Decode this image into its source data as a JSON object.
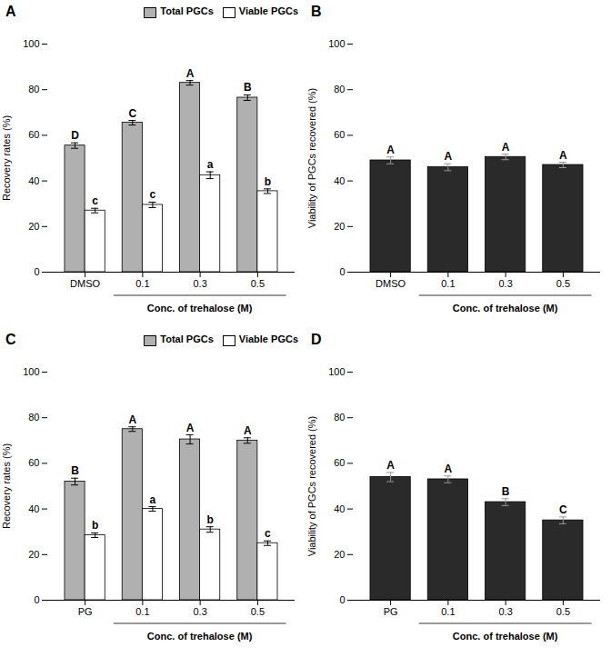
{
  "chart_data": [
    {
      "type": "bar",
      "title": "A",
      "categories": [
        "DMSO",
        "0.1",
        "0.3",
        "0.5"
      ],
      "series": [
        {
          "name": "Total PGCs",
          "color": "#b0b0b0",
          "values": [
            55.5,
            65.5,
            83.0,
            76.5
          ],
          "errors": [
            1.2,
            1.0,
            1.0,
            1.2
          ],
          "labels": [
            "D",
            "C",
            "A",
            "B"
          ]
        },
        {
          "name": "Viable PGCs",
          "color": "#ffffff",
          "values": [
            27.0,
            29.5,
            42.5,
            35.5
          ],
          "errors": [
            1.0,
            1.2,
            1.5,
            1.0
          ],
          "labels": [
            "c",
            "c",
            "a",
            "b"
          ]
        }
      ],
      "xlabel": "Conc. of trehalose (M)",
      "ylabel": "Recovery rates (%)",
      "ylim": [
        0,
        100
      ],
      "yticks": [
        0,
        20,
        40,
        60,
        80,
        100
      ],
      "legend": "upper right"
    },
    {
      "type": "bar",
      "title": "B",
      "categories": [
        "DMSO",
        "0.1",
        "0.3",
        "0.5"
      ],
      "values": [
        49.0,
        46.0,
        50.5,
        47.0
      ],
      "errors": [
        1.5,
        1.5,
        1.2,
        1.2
      ],
      "labels": [
        "A",
        "A",
        "A",
        "A"
      ],
      "color": "#2a2a2a",
      "xlabel": "Conc. of trehalose (M)",
      "ylabel": "Viability of PGCs recovered (%)",
      "ylim": [
        0,
        100
      ],
      "yticks": [
        0,
        20,
        40,
        60,
        80,
        100
      ]
    },
    {
      "type": "bar",
      "title": "C",
      "categories": [
        "PG",
        "0.1",
        "0.3",
        "0.5"
      ],
      "series": [
        {
          "name": "Total PGCs",
          "color": "#b0b0b0",
          "values": [
            52.0,
            75.0,
            70.5,
            70.0
          ],
          "errors": [
            1.5,
            1.0,
            2.0,
            1.2
          ],
          "labels": [
            "B",
            "A",
            "A",
            "A"
          ]
        },
        {
          "name": "Viable PGCs",
          "color": "#ffffff",
          "values": [
            28.5,
            40.0,
            31.0,
            25.0
          ],
          "errors": [
            1.0,
            1.0,
            1.2,
            1.0
          ],
          "labels": [
            "b",
            "a",
            "b",
            "c"
          ]
        }
      ],
      "xlabel": "Conc. of trehalose (M)",
      "ylabel": "Recovery rates (%)",
      "ylim": [
        0,
        100
      ],
      "yticks": [
        0,
        20,
        40,
        60,
        80,
        100
      ],
      "legend": "upper right"
    },
    {
      "type": "bar",
      "title": "D",
      "categories": [
        "PG",
        "0.1",
        "0.3",
        "0.5"
      ],
      "values": [
        54.0,
        53.0,
        43.0,
        35.0
      ],
      "errors": [
        2.0,
        1.5,
        1.5,
        1.5
      ],
      "labels": [
        "A",
        "A",
        "B",
        "C"
      ],
      "color": "#2a2a2a",
      "xlabel": "Conc. of trehalose (M)",
      "ylabel": "Viability of PGCs recovered (%)",
      "ylim": [
        0,
        100
      ],
      "yticks": [
        0,
        20,
        40,
        60,
        80,
        100
      ]
    }
  ]
}
